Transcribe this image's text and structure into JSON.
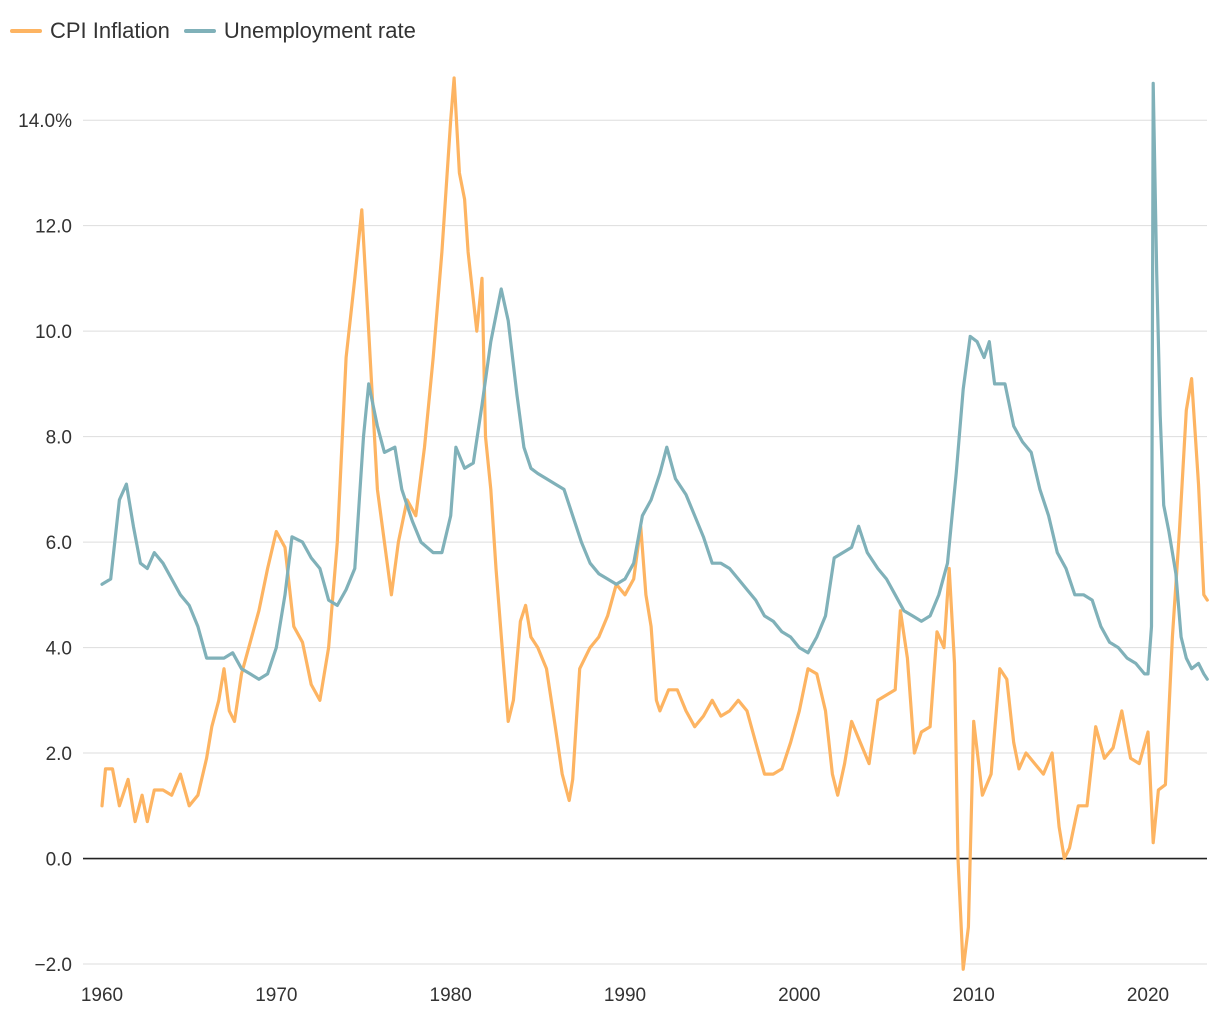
{
  "chart_data": {
    "type": "line",
    "title": "",
    "xlabel": "",
    "ylabel": "",
    "xlim": [
      1960,
      2023.5
    ],
    "ylim": [
      -2.0,
      14.8
    ],
    "grid": true,
    "legend_position": "top-left",
    "y_ticks": [
      {
        "value": -2.0,
        "label": "−2.0"
      },
      {
        "value": 0.0,
        "label": "0.0"
      },
      {
        "value": 2.0,
        "label": "2.0"
      },
      {
        "value": 4.0,
        "label": "4.0"
      },
      {
        "value": 6.0,
        "label": "6.0"
      },
      {
        "value": 8.0,
        "label": "8.0"
      },
      {
        "value": 10.0,
        "label": "10.0"
      },
      {
        "value": 12.0,
        "label": "12.0"
      },
      {
        "value": 14.0,
        "label": "14.0%"
      }
    ],
    "x_ticks": [
      {
        "value": 1960,
        "label": "1960"
      },
      {
        "value": 1970,
        "label": "1970"
      },
      {
        "value": 1980,
        "label": "1980"
      },
      {
        "value": 1990,
        "label": "1990"
      },
      {
        "value": 2000,
        "label": "2000"
      },
      {
        "value": 2010,
        "label": "2010"
      },
      {
        "value": 2020,
        "label": "2020"
      }
    ],
    "series": [
      {
        "name": "CPI Inflation",
        "color": "#fdb462",
        "points": [
          [
            1960.0,
            1.0
          ],
          [
            1960.2,
            1.7
          ],
          [
            1960.6,
            1.7
          ],
          [
            1961.0,
            1.0
          ],
          [
            1961.5,
            1.5
          ],
          [
            1961.9,
            0.7
          ],
          [
            1962.3,
            1.2
          ],
          [
            1962.6,
            0.7
          ],
          [
            1963.0,
            1.3
          ],
          [
            1963.5,
            1.3
          ],
          [
            1964.0,
            1.2
          ],
          [
            1964.5,
            1.6
          ],
          [
            1965.0,
            1.0
          ],
          [
            1965.5,
            1.2
          ],
          [
            1966.0,
            1.9
          ],
          [
            1966.3,
            2.5
          ],
          [
            1966.7,
            3.0
          ],
          [
            1967.0,
            3.6
          ],
          [
            1967.3,
            2.8
          ],
          [
            1967.6,
            2.6
          ],
          [
            1968.0,
            3.5
          ],
          [
            1968.5,
            4.1
          ],
          [
            1969.0,
            4.7
          ],
          [
            1969.5,
            5.5
          ],
          [
            1970.0,
            6.2
          ],
          [
            1970.5,
            5.9
          ],
          [
            1971.0,
            4.4
          ],
          [
            1971.5,
            4.1
          ],
          [
            1972.0,
            3.3
          ],
          [
            1972.5,
            3.0
          ],
          [
            1973.0,
            4.0
          ],
          [
            1973.5,
            6.0
          ],
          [
            1974.0,
            9.5
          ],
          [
            1974.5,
            11.0
          ],
          [
            1974.9,
            12.3
          ],
          [
            1975.3,
            10.0
          ],
          [
            1975.8,
            7.0
          ],
          [
            1976.2,
            6.0
          ],
          [
            1976.6,
            5.0
          ],
          [
            1977.0,
            6.0
          ],
          [
            1977.5,
            6.8
          ],
          [
            1978.0,
            6.5
          ],
          [
            1978.5,
            7.8
          ],
          [
            1979.0,
            9.5
          ],
          [
            1979.5,
            11.5
          ],
          [
            1980.0,
            14.0
          ],
          [
            1980.2,
            14.8
          ],
          [
            1980.5,
            13.0
          ],
          [
            1980.8,
            12.5
          ],
          [
            1981.0,
            11.5
          ],
          [
            1981.5,
            10.0
          ],
          [
            1981.8,
            11.0
          ],
          [
            1982.0,
            8.0
          ],
          [
            1982.3,
            7.0
          ],
          [
            1982.6,
            5.5
          ],
          [
            1983.0,
            3.8
          ],
          [
            1983.3,
            2.6
          ],
          [
            1983.6,
            3.0
          ],
          [
            1984.0,
            4.5
          ],
          [
            1984.3,
            4.8
          ],
          [
            1984.6,
            4.2
          ],
          [
            1985.0,
            4.0
          ],
          [
            1985.5,
            3.6
          ],
          [
            1986.0,
            2.5
          ],
          [
            1986.4,
            1.6
          ],
          [
            1986.8,
            1.1
          ],
          [
            1987.0,
            1.5
          ],
          [
            1987.4,
            3.6
          ],
          [
            1988.0,
            4.0
          ],
          [
            1988.5,
            4.2
          ],
          [
            1989.0,
            4.6
          ],
          [
            1989.5,
            5.2
          ],
          [
            1990.0,
            5.0
          ],
          [
            1990.5,
            5.3
          ],
          [
            1990.9,
            6.3
          ],
          [
            1991.2,
            5.0
          ],
          [
            1991.5,
            4.4
          ],
          [
            1991.8,
            3.0
          ],
          [
            1992.0,
            2.8
          ],
          [
            1992.5,
            3.2
          ],
          [
            1993.0,
            3.2
          ],
          [
            1993.5,
            2.8
          ],
          [
            1994.0,
            2.5
          ],
          [
            1994.5,
            2.7
          ],
          [
            1995.0,
            3.0
          ],
          [
            1995.5,
            2.7
          ],
          [
            1996.0,
            2.8
          ],
          [
            1996.5,
            3.0
          ],
          [
            1997.0,
            2.8
          ],
          [
            1997.5,
            2.2
          ],
          [
            1998.0,
            1.6
          ],
          [
            1998.5,
            1.6
          ],
          [
            1999.0,
            1.7
          ],
          [
            1999.5,
            2.2
          ],
          [
            2000.0,
            2.8
          ],
          [
            2000.5,
            3.6
          ],
          [
            2001.0,
            3.5
          ],
          [
            2001.5,
            2.8
          ],
          [
            2001.9,
            1.6
          ],
          [
            2002.2,
            1.2
          ],
          [
            2002.6,
            1.8
          ],
          [
            2003.0,
            2.6
          ],
          [
            2003.5,
            2.2
          ],
          [
            2004.0,
            1.8
          ],
          [
            2004.5,
            3.0
          ],
          [
            2005.0,
            3.1
          ],
          [
            2005.5,
            3.2
          ],
          [
            2005.8,
            4.7
          ],
          [
            2006.2,
            3.8
          ],
          [
            2006.6,
            2.0
          ],
          [
            2007.0,
            2.4
          ],
          [
            2007.5,
            2.5
          ],
          [
            2007.9,
            4.3
          ],
          [
            2008.3,
            4.0
          ],
          [
            2008.6,
            5.5
          ],
          [
            2008.9,
            3.7
          ],
          [
            2009.1,
            0.0
          ],
          [
            2009.4,
            -2.1
          ],
          [
            2009.7,
            -1.3
          ],
          [
            2010.0,
            2.6
          ],
          [
            2010.5,
            1.2
          ],
          [
            2011.0,
            1.6
          ],
          [
            2011.5,
            3.6
          ],
          [
            2011.9,
            3.4
          ],
          [
            2012.3,
            2.2
          ],
          [
            2012.6,
            1.7
          ],
          [
            2013.0,
            2.0
          ],
          [
            2013.5,
            1.8
          ],
          [
            2014.0,
            1.6
          ],
          [
            2014.5,
            2.0
          ],
          [
            2014.9,
            0.6
          ],
          [
            2015.2,
            0.0
          ],
          [
            2015.5,
            0.2
          ],
          [
            2016.0,
            1.0
          ],
          [
            2016.5,
            1.0
          ],
          [
            2017.0,
            2.5
          ],
          [
            2017.5,
            1.9
          ],
          [
            2018.0,
            2.1
          ],
          [
            2018.5,
            2.8
          ],
          [
            2019.0,
            1.9
          ],
          [
            2019.5,
            1.8
          ],
          [
            2020.0,
            2.4
          ],
          [
            2020.3,
            0.3
          ],
          [
            2020.6,
            1.3
          ],
          [
            2021.0,
            1.4
          ],
          [
            2021.4,
            4.2
          ],
          [
            2021.8,
            6.2
          ],
          [
            2022.2,
            8.5
          ],
          [
            2022.5,
            9.1
          ],
          [
            2022.9,
            7.1
          ],
          [
            2023.2,
            5.0
          ],
          [
            2023.4,
            4.9
          ]
        ]
      },
      {
        "name": "Unemployment rate",
        "color": "#80b1b9",
        "points": [
          [
            1960.0,
            5.2
          ],
          [
            1960.5,
            5.3
          ],
          [
            1961.0,
            6.8
          ],
          [
            1961.4,
            7.1
          ],
          [
            1961.8,
            6.3
          ],
          [
            1962.2,
            5.6
          ],
          [
            1962.6,
            5.5
          ],
          [
            1963.0,
            5.8
          ],
          [
            1963.5,
            5.6
          ],
          [
            1964.0,
            5.3
          ],
          [
            1964.5,
            5.0
          ],
          [
            1965.0,
            4.8
          ],
          [
            1965.5,
            4.4
          ],
          [
            1966.0,
            3.8
          ],
          [
            1966.5,
            3.8
          ],
          [
            1967.0,
            3.8
          ],
          [
            1967.5,
            3.9
          ],
          [
            1968.0,
            3.6
          ],
          [
            1968.5,
            3.5
          ],
          [
            1969.0,
            3.4
          ],
          [
            1969.5,
            3.5
          ],
          [
            1970.0,
            4.0
          ],
          [
            1970.5,
            5.0
          ],
          [
            1970.9,
            6.1
          ],
          [
            1971.5,
            6.0
          ],
          [
            1972.0,
            5.7
          ],
          [
            1972.5,
            5.5
          ],
          [
            1973.0,
            4.9
          ],
          [
            1973.5,
            4.8
          ],
          [
            1974.0,
            5.1
          ],
          [
            1974.5,
            5.5
          ],
          [
            1975.0,
            8.0
          ],
          [
            1975.3,
            9.0
          ],
          [
            1975.8,
            8.2
          ],
          [
            1976.2,
            7.7
          ],
          [
            1976.8,
            7.8
          ],
          [
            1977.2,
            7.0
          ],
          [
            1977.8,
            6.4
          ],
          [
            1978.3,
            6.0
          ],
          [
            1979.0,
            5.8
          ],
          [
            1979.5,
            5.8
          ],
          [
            1980.0,
            6.5
          ],
          [
            1980.3,
            7.8
          ],
          [
            1980.8,
            7.4
          ],
          [
            1981.3,
            7.5
          ],
          [
            1981.8,
            8.6
          ],
          [
            1982.3,
            9.8
          ],
          [
            1982.9,
            10.8
          ],
          [
            1983.3,
            10.2
          ],
          [
            1983.8,
            8.8
          ],
          [
            1984.2,
            7.8
          ],
          [
            1984.6,
            7.4
          ],
          [
            1985.0,
            7.3
          ],
          [
            1985.5,
            7.2
          ],
          [
            1986.0,
            7.1
          ],
          [
            1986.5,
            7.0
          ],
          [
            1987.0,
            6.5
          ],
          [
            1987.5,
            6.0
          ],
          [
            1988.0,
            5.6
          ],
          [
            1988.5,
            5.4
          ],
          [
            1989.0,
            5.3
          ],
          [
            1989.5,
            5.2
          ],
          [
            1990.0,
            5.3
          ],
          [
            1990.5,
            5.6
          ],
          [
            1991.0,
            6.5
          ],
          [
            1991.5,
            6.8
          ],
          [
            1992.0,
            7.3
          ],
          [
            1992.4,
            7.8
          ],
          [
            1992.9,
            7.2
          ],
          [
            1993.5,
            6.9
          ],
          [
            1994.0,
            6.5
          ],
          [
            1994.5,
            6.1
          ],
          [
            1995.0,
            5.6
          ],
          [
            1995.5,
            5.6
          ],
          [
            1996.0,
            5.5
          ],
          [
            1996.5,
            5.3
          ],
          [
            1997.0,
            5.1
          ],
          [
            1997.5,
            4.9
          ],
          [
            1998.0,
            4.6
          ],
          [
            1998.5,
            4.5
          ],
          [
            1999.0,
            4.3
          ],
          [
            1999.5,
            4.2
          ],
          [
            2000.0,
            4.0
          ],
          [
            2000.5,
            3.9
          ],
          [
            2001.0,
            4.2
          ],
          [
            2001.5,
            4.6
          ],
          [
            2002.0,
            5.7
          ],
          [
            2002.5,
            5.8
          ],
          [
            2003.0,
            5.9
          ],
          [
            2003.4,
            6.3
          ],
          [
            2003.9,
            5.8
          ],
          [
            2004.5,
            5.5
          ],
          [
            2005.0,
            5.3
          ],
          [
            2005.5,
            5.0
          ],
          [
            2006.0,
            4.7
          ],
          [
            2006.5,
            4.6
          ],
          [
            2007.0,
            4.5
          ],
          [
            2007.5,
            4.6
          ],
          [
            2008.0,
            5.0
          ],
          [
            2008.5,
            5.6
          ],
          [
            2009.0,
            7.3
          ],
          [
            2009.4,
            8.9
          ],
          [
            2009.8,
            9.9
          ],
          [
            2010.2,
            9.8
          ],
          [
            2010.6,
            9.5
          ],
          [
            2010.9,
            9.8
          ],
          [
            2011.2,
            9.0
          ],
          [
            2011.8,
            9.0
          ],
          [
            2012.3,
            8.2
          ],
          [
            2012.8,
            7.9
          ],
          [
            2013.3,
            7.7
          ],
          [
            2013.8,
            7.0
          ],
          [
            2014.3,
            6.5
          ],
          [
            2014.8,
            5.8
          ],
          [
            2015.3,
            5.5
          ],
          [
            2015.8,
            5.0
          ],
          [
            2016.3,
            5.0
          ],
          [
            2016.8,
            4.9
          ],
          [
            2017.3,
            4.4
          ],
          [
            2017.8,
            4.1
          ],
          [
            2018.3,
            4.0
          ],
          [
            2018.8,
            3.8
          ],
          [
            2019.3,
            3.7
          ],
          [
            2019.8,
            3.5
          ],
          [
            2020.0,
            3.5
          ],
          [
            2020.2,
            4.4
          ],
          [
            2020.3,
            14.7
          ],
          [
            2020.5,
            11.1
          ],
          [
            2020.7,
            8.4
          ],
          [
            2020.9,
            6.7
          ],
          [
            2021.2,
            6.2
          ],
          [
            2021.6,
            5.4
          ],
          [
            2021.9,
            4.2
          ],
          [
            2022.2,
            3.8
          ],
          [
            2022.5,
            3.6
          ],
          [
            2022.9,
            3.7
          ],
          [
            2023.2,
            3.5
          ],
          [
            2023.4,
            3.4
          ]
        ]
      }
    ]
  }
}
